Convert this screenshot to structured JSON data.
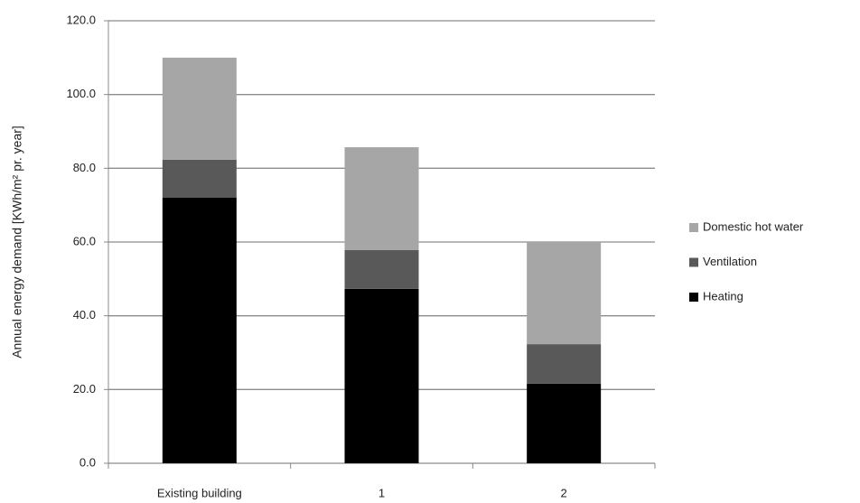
{
  "chart_data": {
    "type": "stacked_bar",
    "y_label": "Annual energy demand [KWh/m² pr. year]",
    "categories": [
      "Existing building",
      "1",
      "2"
    ],
    "series": [
      {
        "name": "Heating",
        "color": "#000000",
        "values": [
          72.0,
          47.3,
          21.6
        ]
      },
      {
        "name": "Ventilation",
        "color": "#595959",
        "values": [
          10.3,
          10.5,
          10.7
        ]
      },
      {
        "name": "Domestic hot water",
        "color": "#a6a6a6",
        "values": [
          27.7,
          27.9,
          27.7
        ]
      }
    ],
    "ylim": [
      0,
      120
    ],
    "yticks": [
      {
        "value": 0,
        "label": "0.0"
      },
      {
        "value": 20,
        "label": "20.0"
      },
      {
        "value": 40,
        "label": "40.0"
      },
      {
        "value": 60,
        "label": "60.0"
      },
      {
        "value": 80,
        "label": "80.0"
      },
      {
        "value": 100,
        "label": "100.0"
      },
      {
        "value": 120,
        "label": "120.0"
      }
    ],
    "grid": true,
    "legend": "right"
  }
}
